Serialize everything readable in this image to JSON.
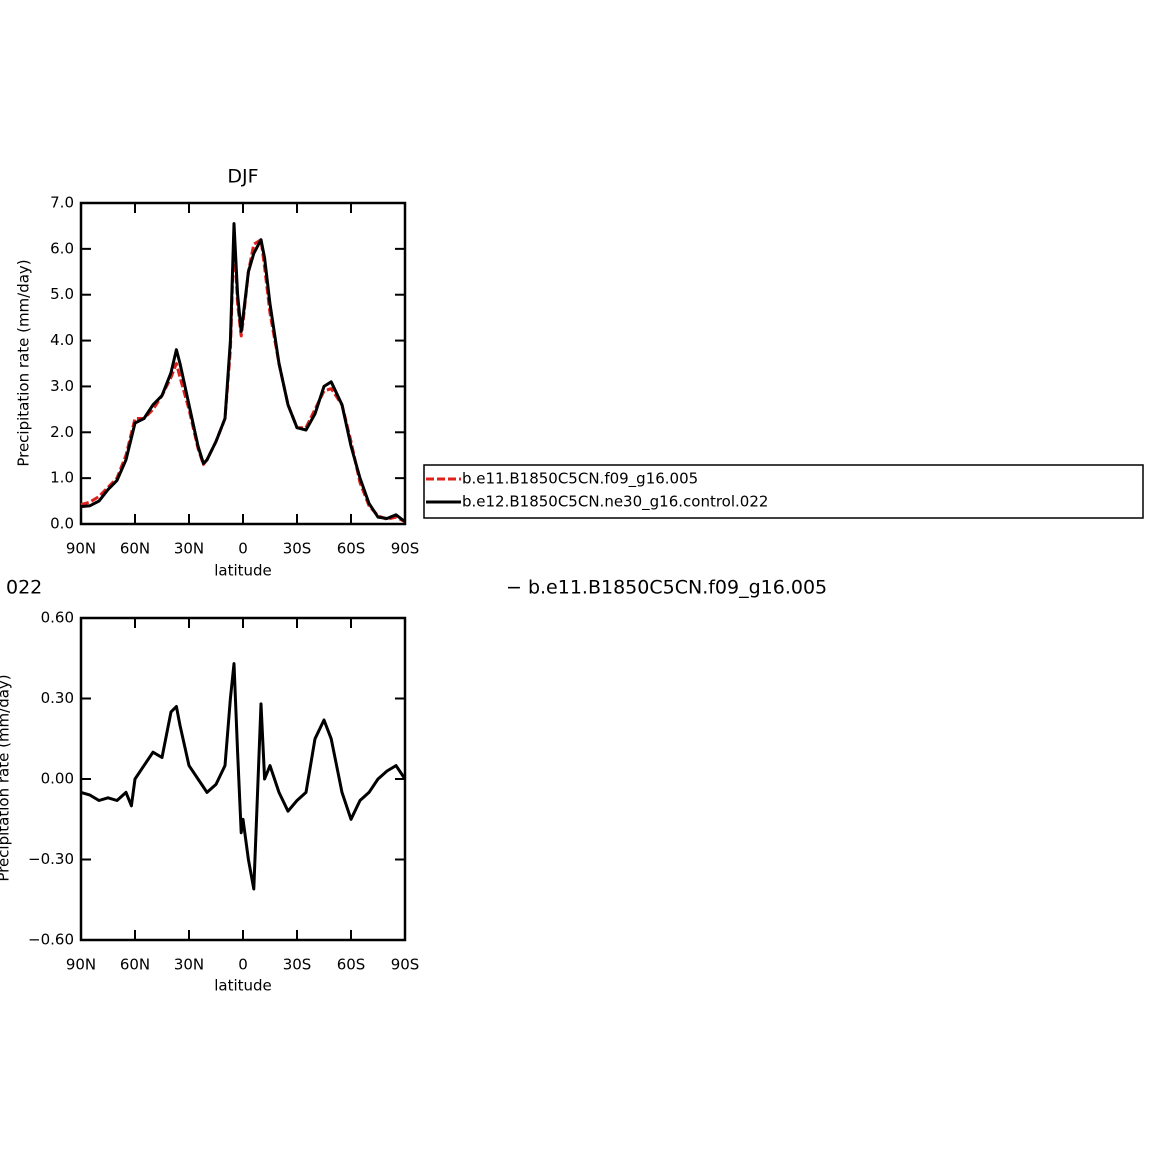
{
  "chart_data": [
    {
      "type": "line",
      "title": "DJF",
      "xlabel": "latitude",
      "ylabel": "Precipitation rate (mm/day)",
      "x": [
        90,
        85,
        80,
        75,
        70,
        65,
        60,
        55,
        50,
        45,
        40,
        37,
        35,
        30,
        25,
        22,
        20,
        15,
        10,
        7,
        5,
        3,
        1,
        0,
        -3,
        -6,
        -10,
        -12,
        -15,
        -20,
        -25,
        -30,
        -35,
        -40,
        -45,
        -49,
        -55,
        -60,
        -65,
        -70,
        -75,
        -80,
        -85,
        -90
      ],
      "xlim": [
        90,
        -90
      ],
      "xticks": [
        {
          "value": 90,
          "label": "90N"
        },
        {
          "value": 60,
          "label": "60N"
        },
        {
          "value": 30,
          "label": "30N"
        },
        0,
        {
          "value": -30,
          "label": "30S"
        },
        {
          "value": -60,
          "label": "60S"
        },
        {
          "value": -90,
          "label": "90S"
        }
      ],
      "ylim": [
        0,
        7
      ],
      "yticks": [
        {
          "value": 0,
          "label": "0.0"
        },
        {
          "value": 1,
          "label": "1.0"
        },
        {
          "value": 2,
          "label": "2.0"
        },
        {
          "value": 3,
          "label": "3.0"
        },
        {
          "value": 4,
          "label": "4.0"
        },
        {
          "value": 5,
          "label": "5.0"
        },
        {
          "value": 6,
          "label": "6.0"
        },
        {
          "value": 7,
          "label": "7.0"
        }
      ],
      "series": [
        {
          "name": "b.e11.B1850C5CN.f09_g16.005",
          "color": "#e0201b",
          "dashed": true,
          "values": [
            0.42,
            0.48,
            0.6,
            0.8,
            1.0,
            1.5,
            2.3,
            2.3,
            2.5,
            2.8,
            3.2,
            3.5,
            3.2,
            2.5,
            1.65,
            1.3,
            1.4,
            1.8,
            2.3,
            3.8,
            6.3,
            4.8,
            4.1,
            4.4,
            5.5,
            6.1,
            6.2,
            5.6,
            4.6,
            3.5,
            2.6,
            2.1,
            2.1,
            2.5,
            2.9,
            2.95,
            2.6,
            1.8,
            0.9,
            0.4,
            0.18,
            0.1,
            0.15,
            0.05
          ]
        },
        {
          "name": "b.e12.B1850C5CN.ne30_g16.control.022",
          "color": "#000000",
          "dashed": false,
          "values": [
            0.38,
            0.4,
            0.5,
            0.75,
            0.95,
            1.4,
            2.2,
            2.3,
            2.6,
            2.8,
            3.3,
            3.8,
            3.5,
            2.6,
            1.7,
            1.32,
            1.4,
            1.8,
            2.3,
            4.0,
            6.55,
            5.0,
            4.2,
            4.5,
            5.5,
            5.9,
            6.2,
            5.8,
            4.8,
            3.5,
            2.6,
            2.1,
            2.05,
            2.4,
            3.0,
            3.1,
            2.6,
            1.7,
            1.0,
            0.45,
            0.15,
            0.12,
            0.2,
            0.05
          ]
        }
      ]
    },
    {
      "type": "line",
      "xlabel": "latitude",
      "ylabel": "Precipitation rate (mm/day)",
      "annotations": [
        "022",
        "− b.e11.B1850C5CN.f09_g16.005"
      ],
      "x": [
        90,
        85,
        80,
        75,
        70,
        65,
        62,
        60,
        55,
        50,
        45,
        40,
        37,
        35,
        30,
        25,
        22,
        20,
        15,
        10,
        7,
        5,
        3,
        1,
        0,
        -3,
        -6,
        -10,
        -12,
        -15,
        -20,
        -25,
        -30,
        -35,
        -40,
        -45,
        -49,
        -55,
        -60,
        -65,
        -70,
        -75,
        -80,
        -85,
        -90
      ],
      "xlim": [
        90,
        -90
      ],
      "xticks": [
        {
          "value": 90,
          "label": "90N"
        },
        {
          "value": 60,
          "label": "60N"
        },
        {
          "value": 30,
          "label": "30N"
        },
        0,
        {
          "value": -30,
          "label": "30S"
        },
        {
          "value": -60,
          "label": "60S"
        },
        {
          "value": -90,
          "label": "90S"
        }
      ],
      "ylim": [
        -0.6,
        0.6
      ],
      "yticks": [
        {
          "value": -0.6,
          "label": "−0.60"
        },
        {
          "value": -0.3,
          "label": "−0.30"
        },
        {
          "value": 0,
          "label": "0.00"
        },
        {
          "value": 0.3,
          "label": "0.30"
        },
        {
          "value": 0.6,
          "label": "0.60"
        }
      ],
      "series": [
        {
          "color": "#000000",
          "dashed": false,
          "values": [
            -0.05,
            -0.06,
            -0.08,
            -0.07,
            -0.08,
            -0.05,
            -0.1,
            0.0,
            0.05,
            0.1,
            0.08,
            0.25,
            0.27,
            0.2,
            0.05,
            0.0,
            -0.03,
            -0.05,
            -0.02,
            0.05,
            0.3,
            0.43,
            0.1,
            -0.2,
            -0.15,
            -0.3,
            -0.41,
            0.28,
            0.0,
            0.05,
            -0.05,
            -0.12,
            -0.08,
            -0.05,
            0.15,
            0.22,
            0.15,
            -0.05,
            -0.15,
            -0.08,
            -0.05,
            0.0,
            0.03,
            0.05,
            0.0
          ]
        }
      ]
    }
  ]
}
